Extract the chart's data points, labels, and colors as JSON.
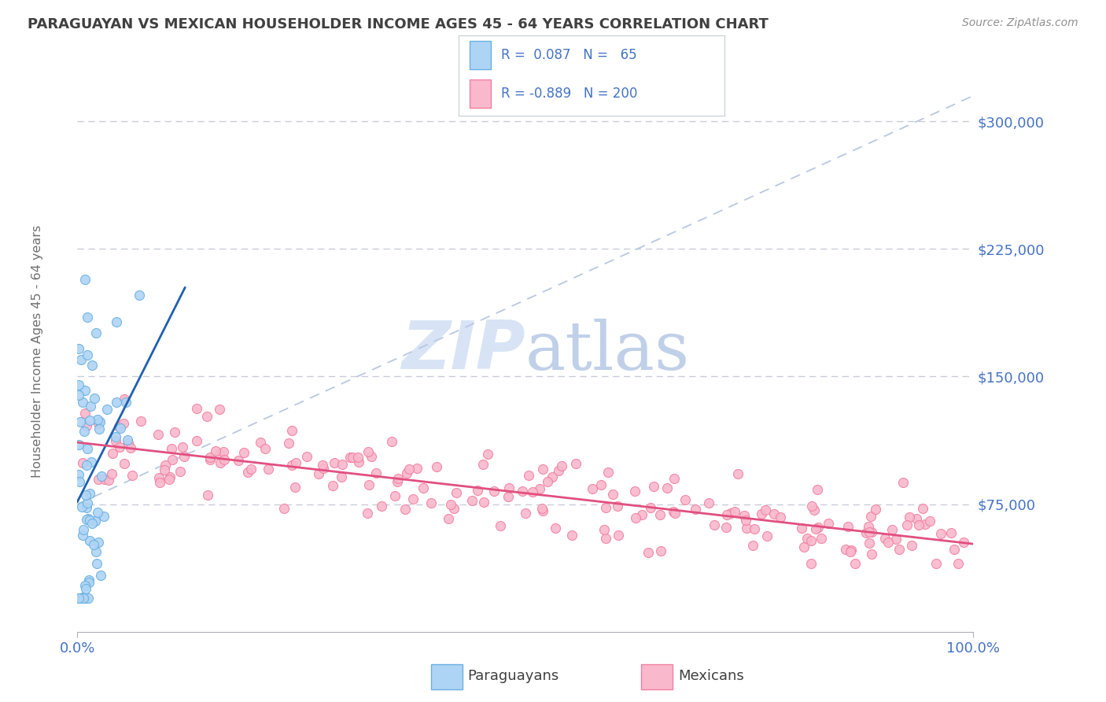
{
  "title": "PARAGUAYAN VS MEXICAN HOUSEHOLDER INCOME AGES 45 - 64 YEARS CORRELATION CHART",
  "source": "Source: ZipAtlas.com",
  "ylabel": "Householder Income Ages 45 - 64 years",
  "ytick_values": [
    0,
    75000,
    150000,
    225000,
    300000
  ],
  "ytick_labels": [
    "",
    "$75,000",
    "$150,000",
    "$225,000",
    "$300,000"
  ],
  "xlim": [
    0.0,
    1.0
  ],
  "ylim": [
    0,
    330000
  ],
  "paraguayan_color": "#6ab0e0",
  "paraguayan_fill": "#aed4f5",
  "mexican_color": "#f080a0",
  "mexican_fill": "#f9b8cc",
  "trend_color_paraguayan": "#2060b0",
  "trend_color_mexican": "#e05080",
  "ref_line_color": "#b8c8e0",
  "background_color": "#ffffff",
  "grid_color": "#c8ccd8",
  "title_color": "#404040",
  "tick_color": "#4472c4",
  "ylabel_color": "#707070",
  "source_color": "#909090",
  "watermark_color": "#d8e4f5",
  "legend_text_color": "#4472c4",
  "legend_border_color": "#c8ccd0",
  "paraguayan_R": 0.087,
  "paraguayan_N": 65,
  "mexican_R": -0.889,
  "mexican_N": 200
}
